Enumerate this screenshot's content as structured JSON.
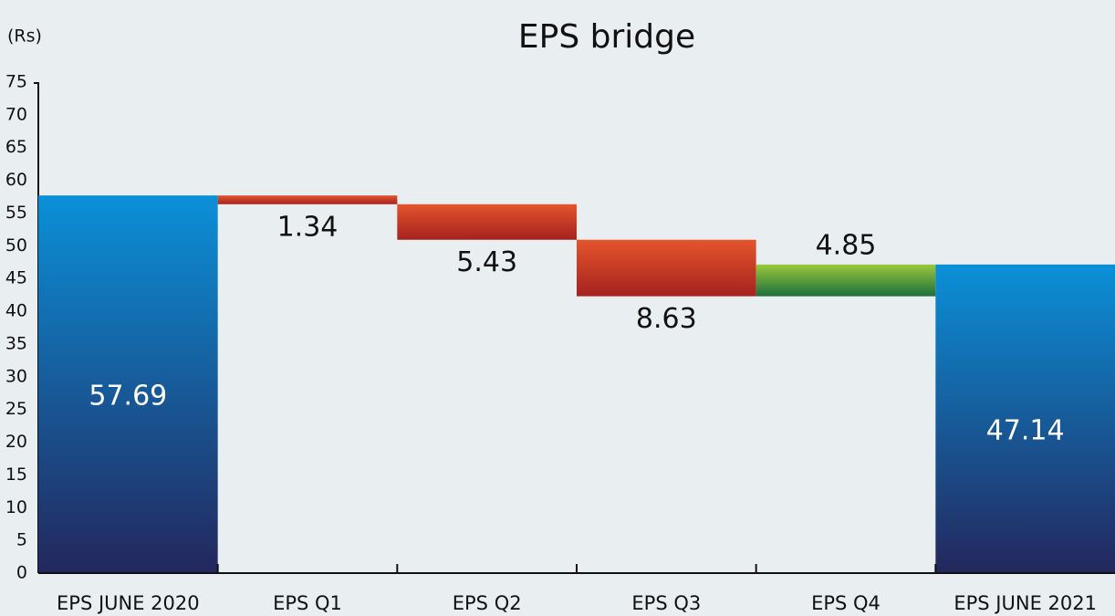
{
  "chart_data": {
    "type": "waterfall",
    "title": "EPS bridge",
    "y_label": "(Rs)",
    "categories": [
      "EPS JUNE 2020",
      "EPS Q1",
      "EPS Q2",
      "EPS Q3",
      "EPS Q4",
      "EPS JUNE 2021"
    ],
    "values": [
      57.69,
      -1.34,
      -5.43,
      -8.63,
      4.85,
      47.14
    ],
    "value_labels": [
      "57.69",
      "1.34",
      "5.43",
      "8.63",
      "4.85",
      "47.14"
    ],
    "total_color": [
      "#0b90d8",
      "#23275c"
    ],
    "decrease_color": [
      "#e4552b",
      "#a5221f"
    ],
    "increase_color": [
      "#9bc83c",
      "#1b6f3c"
    ],
    "ylim": [
      0,
      75
    ],
    "yticks": [
      0,
      5,
      10,
      15,
      20,
      25,
      30,
      35,
      40,
      45,
      50,
      55,
      60,
      65,
      70,
      75
    ],
    "grid": false
  }
}
